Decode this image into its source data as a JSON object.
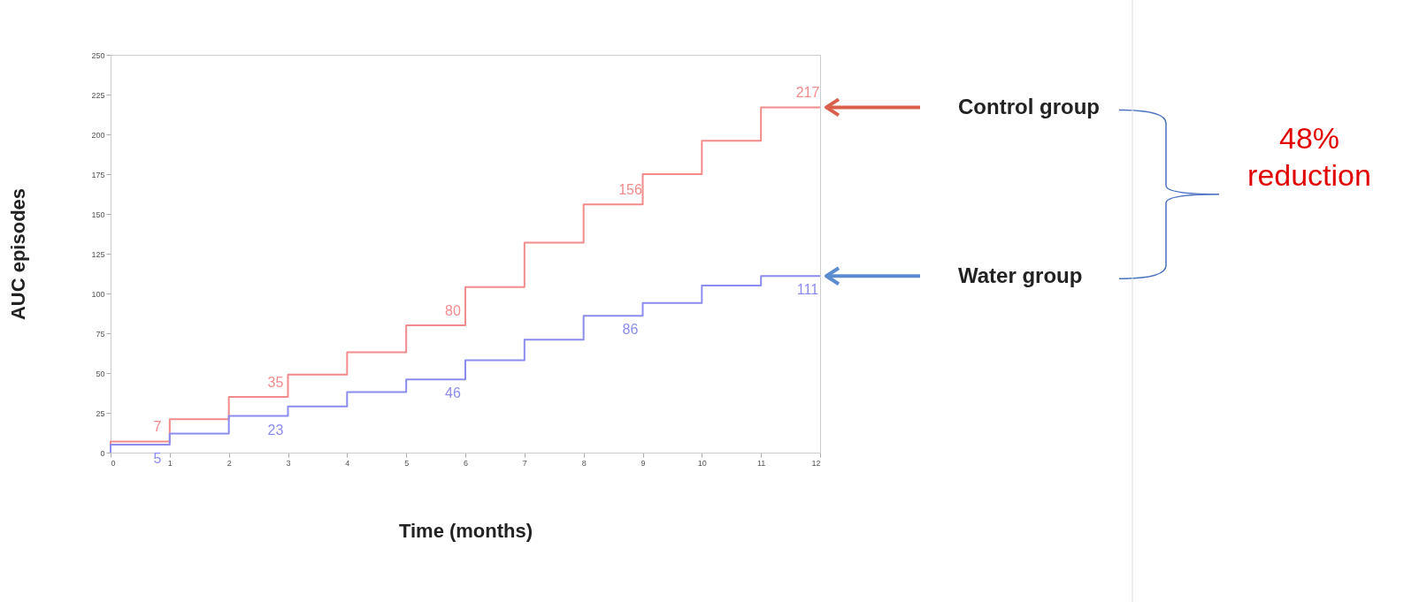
{
  "chart_data": {
    "type": "step",
    "xlabel": "Time (months)",
    "ylabel": "AUC episodes",
    "x": [
      0,
      1,
      2,
      3,
      4,
      5,
      6,
      7,
      8,
      9,
      10,
      11,
      12
    ],
    "xlim": [
      0,
      12
    ],
    "xticks": [
      0,
      1,
      2,
      3,
      4,
      5,
      6,
      7,
      8,
      9,
      10,
      11,
      12
    ],
    "ylim": [
      0,
      250
    ],
    "yticks": [
      0,
      25,
      50,
      75,
      100,
      125,
      150,
      175,
      200,
      225,
      250
    ],
    "grid": false,
    "marker": "none",
    "series": [
      {
        "name": "Control group",
        "color": "#f28b8b",
        "values": [
          0,
          7,
          21,
          35,
          49,
          63,
          80,
          104,
          132,
          156,
          175,
          196,
          217
        ],
        "value_labels": [
          null,
          "7",
          null,
          "35",
          null,
          null,
          "80",
          null,
          null,
          "156",
          null,
          null,
          "217"
        ]
      },
      {
        "name": "Water group",
        "color": "#8c8cf0",
        "values": [
          0,
          5,
          12,
          23,
          29,
          38,
          46,
          58,
          71,
          86,
          94,
          105,
          111
        ],
        "value_labels": [
          null,
          "5",
          null,
          "23",
          null,
          null,
          "46",
          null,
          null,
          "86",
          null,
          null,
          "111"
        ]
      }
    ],
    "annotations": [
      "48% reduction"
    ]
  }
}
